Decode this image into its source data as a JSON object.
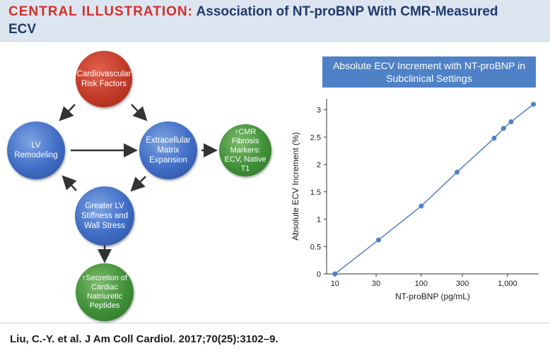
{
  "header": {
    "kicker": "CENTRAL ILLUSTRATION:",
    "title_line1": "Association of NT-proBNP With CMR-Measured",
    "title_line2": "ECV"
  },
  "diagram": {
    "nodes": {
      "risk": "Cardiovascular Risk Factors",
      "lv_remodeling": "LV Remodeling",
      "ecm": "Extracellular Matrix Expansion",
      "cmr": "CMR Fibrosis Markers: ECV, Native T1",
      "stiffness": "Greater LV Stiffness and Wall Stress",
      "secretion": "Secretion of Cardiac Natriuretic Peptides"
    },
    "colors": {
      "risk": "#c23a28",
      "blue": "#3f6cc4",
      "green": "#3f8f37"
    }
  },
  "chart_data": {
    "type": "line",
    "title": "Absolute ECV Increment with NT-proBNP in Subclinical Settings",
    "xlabel": "NT-proBNP (pg/mL)",
    "ylabel": "Absolute ECV Increment (%)",
    "x_scale": "log",
    "xlim": [
      8,
      2300
    ],
    "ylim": [
      0,
      3.2
    ],
    "x_ticks": [
      10,
      30,
      100,
      300,
      1000
    ],
    "x_tick_labels": [
      "10",
      "30",
      "100",
      "300",
      "1,000"
    ],
    "y_ticks": [
      0,
      0.5,
      1,
      1.5,
      2,
      2.5,
      3
    ],
    "y_tick_labels": [
      "0",
      "0.5",
      "1",
      "1.5",
      "2",
      "2.5",
      "3"
    ],
    "x": [
      10,
      32,
      100,
      260,
      700,
      900,
      1100,
      2000
    ],
    "y": [
      0,
      0.62,
      1.24,
      1.86,
      2.48,
      2.66,
      2.78,
      3.1
    ],
    "line_color": "#4f81c7",
    "grid": false
  },
  "citation": "Liu, C.-Y. et al. J Am Coll Cardiol. 2017;70(25):3102–9."
}
